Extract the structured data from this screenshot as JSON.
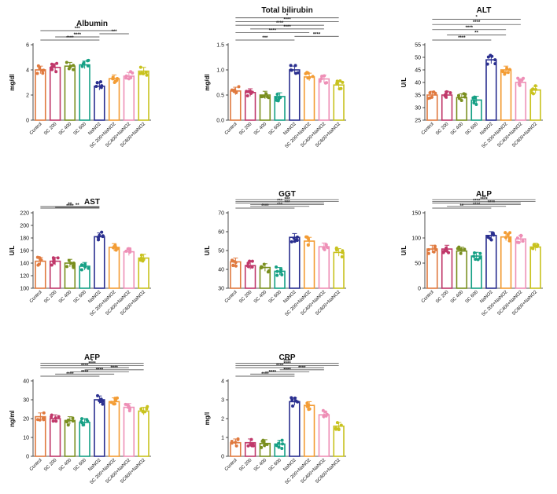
{
  "groups": [
    "Control",
    "SC 200",
    "SC 400",
    "SC 600",
    "NaNO2",
    "SC 200+NaNO2",
    "SC400+NaNO2",
    "SC600+NaNO2"
  ],
  "group_colors": [
    "#e07a3f",
    "#c0386a",
    "#7a8f1f",
    "#16a085",
    "#2a2f8f",
    "#f39c34",
    "#ee8fb6",
    "#c8c21e"
  ],
  "chart_data": [
    {
      "type": "bar",
      "title": "Albumin",
      "ylabel": "mg/dl",
      "ylim": [
        0,
        6
      ],
      "yticks": [
        0,
        2,
        4,
        6
      ],
      "values": [
        4.0,
        4.2,
        4.3,
        4.4,
        2.7,
        3.3,
        3.5,
        3.9
      ],
      "significance": [
        {
          "from": 0,
          "to": 4,
          "label": "****"
        },
        {
          "from": 1,
          "to": 4,
          "label": "****"
        },
        {
          "from": 4,
          "to": 6,
          "label": "***"
        },
        {
          "from": 0,
          "to": 5,
          "label": "***"
        }
      ]
    },
    {
      "type": "bar",
      "title": "Total bilirubin",
      "ylabel": "mg/dl",
      "ylim": [
        0,
        1.5
      ],
      "yticks": [
        0.0,
        0.5,
        1.0,
        1.5
      ],
      "values": [
        0.58,
        0.55,
        0.5,
        0.47,
        1.0,
        0.86,
        0.82,
        0.7
      ],
      "significance": [
        {
          "from": 0,
          "to": 4,
          "label": "***"
        },
        {
          "from": 4,
          "to": 7,
          "label": "****"
        },
        {
          "from": 0,
          "to": 5,
          "label": "****"
        },
        {
          "from": 1,
          "to": 6,
          "label": "****"
        },
        {
          "from": 0,
          "to": 6,
          "label": "****"
        },
        {
          "from": 0,
          "to": 7,
          "label": "****"
        },
        {
          "from": 0,
          "to": 7,
          "label": "*"
        }
      ]
    },
    {
      "type": "bar",
      "title": "ALT",
      "ylabel": "U/L",
      "ylim": [
        25,
        55
      ],
      "yticks": [
        25,
        30,
        35,
        40,
        45,
        50,
        55
      ],
      "values": [
        35,
        35,
        34,
        33,
        49,
        45,
        40,
        37
      ],
      "significance": [
        {
          "from": 0,
          "to": 4,
          "label": "****"
        },
        {
          "from": 1,
          "to": 5,
          "label": "**"
        },
        {
          "from": 0,
          "to": 5,
          "label": "****"
        },
        {
          "from": 0,
          "to": 6,
          "label": "****"
        },
        {
          "from": 0,
          "to": 6,
          "label": "*"
        }
      ]
    },
    {
      "type": "bar",
      "title": "AST",
      "ylabel": "U/L",
      "ylim": [
        100,
        220
      ],
      "yticks": [
        100,
        120,
        140,
        160,
        180,
        200,
        220
      ],
      "values": [
        143,
        143,
        140,
        135,
        182,
        165,
        158,
        148
      ],
      "significance": [
        {
          "from": 0,
          "to": 4,
          "label": "****"
        },
        {
          "from": 1,
          "to": 4,
          "label": "**"
        },
        {
          "from": 0,
          "to": 4,
          "label": "**"
        }
      ]
    },
    {
      "type": "bar",
      "title": "GGT",
      "ylabel": "U/L",
      "ylim": [
        30,
        70
      ],
      "yticks": [
        30,
        40,
        50,
        60,
        70
      ],
      "values": [
        44,
        42,
        41,
        39,
        57,
        55,
        52,
        49
      ],
      "significance": [
        {
          "from": 0,
          "to": 4,
          "label": "****"
        },
        {
          "from": 1,
          "to": 5,
          "label": "***"
        },
        {
          "from": 1,
          "to": 6,
          "label": "***"
        },
        {
          "from": 0,
          "to": 6,
          "label": "***"
        },
        {
          "from": 0,
          "to": 7,
          "label": "***"
        },
        {
          "from": 0,
          "to": 7,
          "label": "**"
        }
      ]
    },
    {
      "type": "bar",
      "title": "ALP",
      "ylabel": "U/L",
      "ylim": [
        0,
        150
      ],
      "yticks": [
        0,
        50,
        100,
        150
      ],
      "values": [
        78,
        78,
        74,
        64,
        105,
        102,
        98,
        82
      ],
      "significance": [
        {
          "from": 0,
          "to": 4,
          "label": "**"
        },
        {
          "from": 1,
          "to": 5,
          "label": "****"
        },
        {
          "from": 2,
          "to": 6,
          "label": "****"
        },
        {
          "from": 0,
          "to": 6,
          "label": "****"
        },
        {
          "from": 0,
          "to": 7,
          "label": "****"
        },
        {
          "from": 0,
          "to": 7,
          "label": "**"
        }
      ]
    },
    {
      "type": "bar",
      "title": "AFP",
      "ylabel": "ng/ml",
      "ylim": [
        0,
        40
      ],
      "yticks": [
        0,
        10,
        20,
        30,
        40
      ],
      "values": [
        21,
        20,
        19,
        18,
        30,
        29,
        26,
        24
      ],
      "significance": [
        {
          "from": 0,
          "to": 4,
          "label": "****"
        },
        {
          "from": 1,
          "to": 5,
          "label": "****"
        },
        {
          "from": 2,
          "to": 6,
          "label": "****"
        },
        {
          "from": 3,
          "to": 7,
          "label": "****"
        },
        {
          "from": 0,
          "to": 6,
          "label": "****"
        },
        {
          "from": 0,
          "to": 7,
          "label": "****"
        },
        {
          "from": 0,
          "to": 7,
          "label": "*"
        }
      ]
    },
    {
      "type": "bar",
      "title": "CRP",
      "ylabel": "mg/l",
      "ylim": [
        0,
        4
      ],
      "yticks": [
        0,
        1,
        2,
        3,
        4
      ],
      "values": [
        0.72,
        0.72,
        0.68,
        0.65,
        2.9,
        2.7,
        2.2,
        1.6
      ],
      "significance": [
        {
          "from": 0,
          "to": 4,
          "label": "****"
        },
        {
          "from": 1,
          "to": 4,
          "label": "****"
        },
        {
          "from": 2,
          "to": 5,
          "label": "****"
        },
        {
          "from": 3,
          "to": 6,
          "label": "****"
        },
        {
          "from": 0,
          "to": 6,
          "label": "****"
        },
        {
          "from": 0,
          "to": 7,
          "label": "****"
        },
        {
          "from": 0,
          "to": 7,
          "label": "****"
        }
      ]
    }
  ]
}
